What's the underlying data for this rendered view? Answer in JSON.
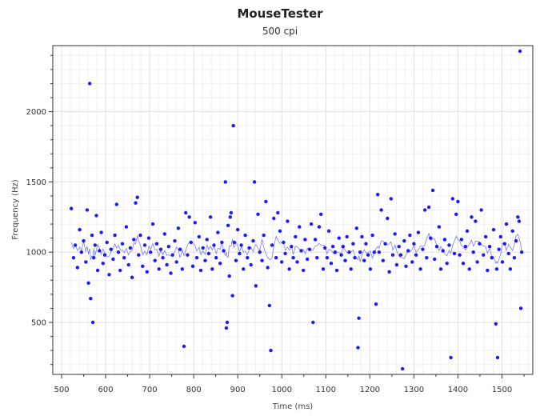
{
  "chart_data": {
    "type": "scatter",
    "title": "MouseTester",
    "subtitle": "500 cpi",
    "xlabel": "Time (ms)",
    "ylabel": "Frequency (Hz)",
    "xlim": [
      480,
      1570
    ],
    "ylim": [
      130,
      2470
    ],
    "xticks": [
      500,
      600,
      700,
      800,
      900,
      1000,
      1100,
      1200,
      1300,
      1400,
      1500
    ],
    "yticks": [
      500,
      1000,
      1500,
      2000
    ],
    "grid": true,
    "legend": "none",
    "point_color": "#1a1aff",
    "line_color": "#7b7bff",
    "series": [
      {
        "points": [
          [
            522,
            1310
          ],
          [
            527,
            960
          ],
          [
            531,
            1050
          ],
          [
            536,
            890
          ],
          [
            541,
            1160
          ],
          [
            545,
            1000
          ],
          [
            550,
            1080
          ],
          [
            555,
            930
          ],
          [
            558,
            1300
          ],
          [
            561,
            780
          ],
          [
            564,
            2200
          ],
          [
            566,
            670
          ],
          [
            569,
            1120
          ],
          [
            571,
            500
          ],
          [
            573,
            960
          ],
          [
            576,
            1050
          ],
          [
            579,
            1260
          ],
          [
            582,
            870
          ],
          [
            586,
            1010
          ],
          [
            590,
            1140
          ],
          [
            594,
            920
          ],
          [
            598,
            980
          ],
          [
            603,
            1070
          ],
          [
            608,
            840
          ],
          [
            612,
            1020
          ],
          [
            617,
            950
          ],
          [
            621,
            1120
          ],
          [
            625,
            1340
          ],
          [
            629,
            1000
          ],
          [
            633,
            870
          ],
          [
            638,
            1060
          ],
          [
            642,
            960
          ],
          [
            647,
            1180
          ],
          [
            652,
            910
          ],
          [
            656,
            1030
          ],
          [
            660,
            820
          ],
          [
            664,
            1090
          ],
          [
            668,
            1350
          ],
          [
            672,
            1390
          ],
          [
            675,
            980
          ],
          [
            679,
            1120
          ],
          [
            684,
            900
          ],
          [
            689,
            1050
          ],
          [
            694,
            860
          ],
          [
            698,
            1100
          ],
          [
            702,
            1000
          ],
          [
            707,
            1200
          ],
          [
            712,
            940
          ],
          [
            716,
            1060
          ],
          [
            721,
            880
          ],
          [
            725,
            1020
          ],
          [
            730,
            960
          ],
          [
            734,
            1130
          ],
          [
            739,
            910
          ],
          [
            743,
            1040
          ],
          [
            748,
            850
          ],
          [
            752,
            980
          ],
          [
            757,
            1080
          ],
          [
            761,
            930
          ],
          [
            765,
            1170
          ],
          [
            769,
            1020
          ],
          [
            774,
            880
          ],
          [
            778,
            330
          ],
          [
            782,
            1280
          ],
          [
            786,
            980
          ],
          [
            790,
            1250
          ],
          [
            794,
            1070
          ],
          [
            798,
            900
          ],
          [
            803,
            1210
          ],
          [
            807,
            960
          ],
          [
            812,
            1110
          ],
          [
            816,
            870
          ],
          [
            821,
            1030
          ],
          [
            826,
            940
          ],
          [
            830,
            1090
          ],
          [
            834,
            990
          ],
          [
            838,
            1250
          ],
          [
            842,
            880
          ],
          [
            846,
            1050
          ],
          [
            851,
            960
          ],
          [
            855,
            1140
          ],
          [
            860,
            920
          ],
          [
            864,
            1070
          ],
          [
            868,
            1010
          ],
          [
            872,
            1500
          ],
          [
            874,
            460
          ],
          [
            876,
            500
          ],
          [
            878,
            1190
          ],
          [
            881,
            830
          ],
          [
            883,
            1250
          ],
          [
            885,
            1280
          ],
          [
            888,
            690
          ],
          [
            890,
            1900
          ],
          [
            892,
            1070
          ],
          [
            896,
            940
          ],
          [
            900,
            1160
          ],
          [
            904,
            990
          ],
          [
            908,
            1050
          ],
          [
            913,
            880
          ],
          [
            917,
            1120
          ],
          [
            922,
            960
          ],
          [
            926,
            1030
          ],
          [
            930,
            910
          ],
          [
            935,
            1080
          ],
          [
            938,
            1500
          ],
          [
            941,
            760
          ],
          [
            946,
            1270
          ],
          [
            950,
            1000
          ],
          [
            955,
            940
          ],
          [
            959,
            1120
          ],
          [
            964,
            1360
          ],
          [
            968,
            890
          ],
          [
            972,
            620
          ],
          [
            975,
            300
          ],
          [
            978,
            1050
          ],
          [
            982,
            1240
          ],
          [
            987,
            960
          ],
          [
            991,
            1280
          ],
          [
            996,
            1150
          ],
          [
            1000,
            930
          ],
          [
            1004,
            1070
          ],
          [
            1008,
            990
          ],
          [
            1013,
            1220
          ],
          [
            1017,
            880
          ],
          [
            1022,
            1040
          ],
          [
            1026,
            960
          ],
          [
            1031,
            1110
          ],
          [
            1035,
            930
          ],
          [
            1040,
            1180
          ],
          [
            1044,
            1010
          ],
          [
            1049,
            870
          ],
          [
            1053,
            1090
          ],
          [
            1058,
            950
          ],
          [
            1063,
            1020
          ],
          [
            1067,
            1200
          ],
          [
            1071,
            500
          ],
          [
            1076,
            1090
          ],
          [
            1080,
            960
          ],
          [
            1085,
            1180
          ],
          [
            1089,
            1270
          ],
          [
            1094,
            880
          ],
          [
            1098,
            1030
          ],
          [
            1103,
            960
          ],
          [
            1107,
            1150
          ],
          [
            1112,
            920
          ],
          [
            1116,
            1040
          ],
          [
            1121,
            1000
          ],
          [
            1125,
            870
          ],
          [
            1130,
            1100
          ],
          [
            1135,
            980
          ],
          [
            1139,
            1040
          ],
          [
            1144,
            940
          ],
          [
            1148,
            1110
          ],
          [
            1153,
            1000
          ],
          [
            1157,
            880
          ],
          [
            1162,
            1060
          ],
          [
            1166,
            960
          ],
          [
            1170,
            1170
          ],
          [
            1173,
            320
          ],
          [
            1175,
            530
          ],
          [
            1178,
            1000
          ],
          [
            1182,
            1110
          ],
          [
            1187,
            940
          ],
          [
            1191,
            1060
          ],
          [
            1196,
            980
          ],
          [
            1201,
            880
          ],
          [
            1206,
            1120
          ],
          [
            1210,
            1000
          ],
          [
            1214,
            630
          ],
          [
            1218,
            1410
          ],
          [
            1221,
            1000
          ],
          [
            1226,
            1300
          ],
          [
            1230,
            940
          ],
          [
            1235,
            1060
          ],
          [
            1240,
            1240
          ],
          [
            1244,
            860
          ],
          [
            1248,
            1380
          ],
          [
            1252,
            980
          ],
          [
            1257,
            1130
          ],
          [
            1261,
            910
          ],
          [
            1266,
            1040
          ],
          [
            1270,
            980
          ],
          [
            1274,
            170
          ],
          [
            1278,
            1080
          ],
          [
            1282,
            900
          ],
          [
            1287,
            1010
          ],
          [
            1291,
            1120
          ],
          [
            1296,
            930
          ],
          [
            1300,
            1060
          ],
          [
            1305,
            980
          ],
          [
            1310,
            1140
          ],
          [
            1315,
            880
          ],
          [
            1320,
            1020
          ],
          [
            1325,
            1300
          ],
          [
            1329,
            960
          ],
          [
            1334,
            1320
          ],
          [
            1338,
            1100
          ],
          [
            1343,
            1440
          ],
          [
            1347,
            950
          ],
          [
            1352,
            1040
          ],
          [
            1357,
            1180
          ],
          [
            1361,
            880
          ],
          [
            1366,
            1010
          ],
          [
            1370,
            1090
          ],
          [
            1375,
            920
          ],
          [
            1380,
            1050
          ],
          [
            1384,
            250
          ],
          [
            1388,
            1380
          ],
          [
            1392,
            990
          ],
          [
            1396,
            1270
          ],
          [
            1400,
            1360
          ],
          [
            1404,
            980
          ],
          [
            1408,
            1090
          ],
          [
            1412,
            920
          ],
          [
            1417,
            1040
          ],
          [
            1421,
            1150
          ],
          [
            1426,
            880
          ],
          [
            1431,
            1250
          ],
          [
            1435,
            1000
          ],
          [
            1440,
            1220
          ],
          [
            1444,
            930
          ],
          [
            1449,
            1060
          ],
          [
            1453,
            1300
          ],
          [
            1458,
            980
          ],
          [
            1463,
            1110
          ],
          [
            1467,
            870
          ],
          [
            1472,
            1040
          ],
          [
            1477,
            960
          ],
          [
            1481,
            1160
          ],
          [
            1486,
            490
          ],
          [
            1488,
            880
          ],
          [
            1490,
            250
          ],
          [
            1493,
            1020
          ],
          [
            1497,
            1110
          ],
          [
            1501,
            930
          ],
          [
            1506,
            1060
          ],
          [
            1510,
            1200
          ],
          [
            1515,
            990
          ],
          [
            1519,
            880
          ],
          [
            1524,
            1150
          ],
          [
            1528,
            960
          ],
          [
            1532,
            1080
          ],
          [
            1536,
            1250
          ],
          [
            1539,
            1220
          ],
          [
            1541,
            2430
          ],
          [
            1543,
            600
          ],
          [
            1545,
            1000
          ]
        ]
      }
    ]
  }
}
